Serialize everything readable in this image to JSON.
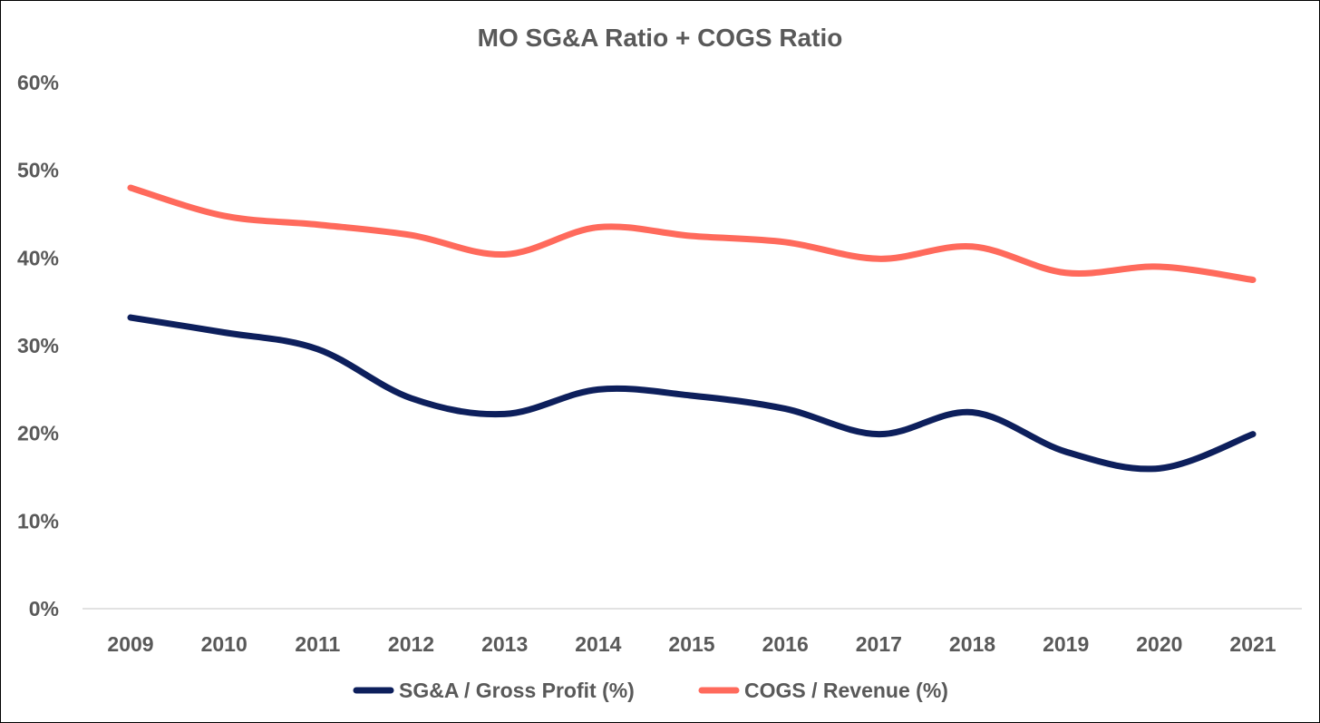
{
  "chart_data": {
    "type": "line",
    "title": "MO SG&A Ratio + COGS Ratio",
    "xlabel": "",
    "ylabel": "",
    "categories": [
      "2009",
      "2010",
      "2011",
      "2012",
      "2013",
      "2014",
      "2015",
      "2016",
      "2017",
      "2018",
      "2019",
      "2020",
      "2021"
    ],
    "ylim": [
      0,
      60
    ],
    "yticks": [
      0,
      10,
      20,
      30,
      40,
      50,
      60
    ],
    "ytick_labels": [
      "0%",
      "10%",
      "20%",
      "30%",
      "40%",
      "50%",
      "60%"
    ],
    "grid": false,
    "smooth": true,
    "legend_position": "bottom",
    "series": [
      {
        "name": "SG&A / Gross Profit (%)",
        "color": "#0d1f5c",
        "values": [
          33.2,
          31.5,
          29.6,
          24.0,
          22.2,
          25.0,
          24.3,
          22.8,
          19.9,
          22.4,
          17.9,
          16.0,
          19.9
        ]
      },
      {
        "name": "COGS / Revenue (%)",
        "color": "#ff6a5c",
        "values": [
          48.0,
          44.8,
          43.8,
          42.6,
          40.4,
          43.5,
          42.5,
          41.8,
          39.9,
          41.3,
          38.3,
          39.0,
          37.5
        ]
      }
    ]
  }
}
